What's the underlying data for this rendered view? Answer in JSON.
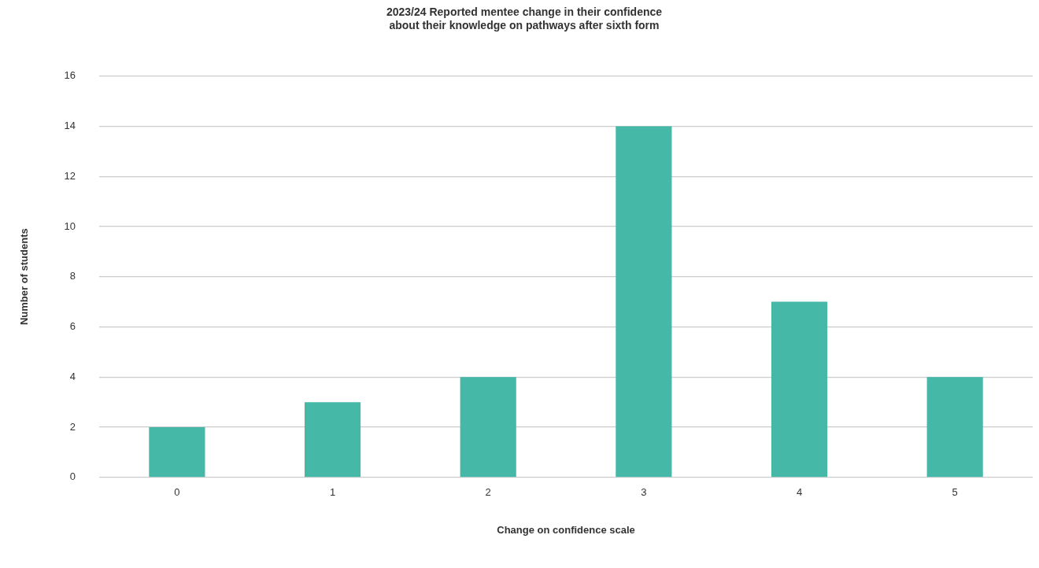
{
  "chart_data": {
    "type": "bar",
    "title": "2023/24 Reported mentee change in their confidence\nabout their knowledge on pathways after sixth form",
    "xlabel": "Change on confidence scale",
    "ylabel": "Number of students",
    "categories": [
      "0",
      "1",
      "2",
      "3",
      "4",
      "5"
    ],
    "values": [
      2,
      3,
      4,
      14,
      7,
      4
    ],
    "color": "#45b8a8",
    "ylim": [
      0,
      16
    ],
    "yticks": [
      0,
      2,
      4,
      6,
      8,
      10,
      12,
      14,
      16
    ],
    "grid": "y",
    "legend": false
  }
}
